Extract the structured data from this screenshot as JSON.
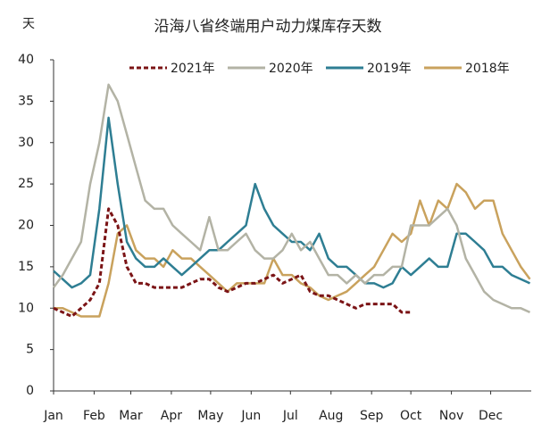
{
  "chart_data": {
    "type": "line",
    "title": "沿海八省终端用户动力煤库存天数",
    "y_label": "天",
    "x": [
      1,
      8,
      15,
      22,
      29,
      36,
      43,
      50,
      57,
      64,
      71,
      78,
      85,
      92,
      99,
      106,
      113,
      120,
      127,
      134,
      141,
      148,
      155,
      162,
      169,
      176,
      183,
      190,
      197,
      204,
      211,
      218,
      225,
      232,
      239,
      246,
      253,
      260,
      267,
      274,
      281,
      288,
      295,
      302,
      309,
      316,
      323,
      330,
      337,
      344,
      351,
      358,
      365
    ],
    "xlim": [
      1,
      366
    ],
    "xticks": [
      {
        "value": 1,
        "label": "Jan"
      },
      {
        "value": 32,
        "label": "Feb"
      },
      {
        "value": 60,
        "label": "Mar"
      },
      {
        "value": 91,
        "label": "Apr"
      },
      {
        "value": 121,
        "label": "May"
      },
      {
        "value": 152,
        "label": "Jun"
      },
      {
        "value": 182,
        "label": "Jul"
      },
      {
        "value": 213,
        "label": "Aug"
      },
      {
        "value": 244,
        "label": "Sep"
      },
      {
        "value": 274,
        "label": "Oct"
      },
      {
        "value": 305,
        "label": "Nov"
      },
      {
        "value": 335,
        "label": "Dec"
      }
    ],
    "ylim": [
      0,
      40
    ],
    "yticks": [
      0,
      5,
      10,
      15,
      20,
      25,
      30,
      35,
      40
    ],
    "grid": false,
    "legend": "top",
    "series": [
      {
        "name": "2021年",
        "color": "#7b1416",
        "dashed": true,
        "values": [
          10,
          9.5,
          9,
          10,
          11,
          13,
          22,
          20,
          15,
          13,
          13,
          12.5,
          12.5,
          12.5,
          12.5,
          13,
          13.5,
          13.5,
          12.5,
          12,
          12.5,
          13,
          13,
          13.5,
          14,
          13,
          13.5,
          14,
          12,
          11.5,
          11.5,
          11,
          10.5,
          10,
          10.5,
          10.5,
          10.5,
          10.5,
          9.5,
          9.5,
          null,
          null,
          null,
          null,
          null,
          null,
          null,
          null,
          null,
          null,
          null,
          null,
          null
        ]
      },
      {
        "name": "2020年",
        "color": "#b3b3a5",
        "dashed": false,
        "values": [
          12.5,
          14,
          16,
          18,
          25,
          30,
          37,
          35,
          31,
          27,
          23,
          22,
          22,
          20,
          19,
          18,
          17,
          21,
          17,
          17,
          18,
          19,
          17,
          16,
          16,
          17,
          19,
          17,
          18,
          16,
          14,
          14,
          13,
          14,
          13,
          14,
          14,
          15,
          15,
          20,
          20,
          20,
          21,
          22,
          20,
          16,
          14,
          12,
          11,
          10.5,
          10,
          10,
          9.5
        ]
      },
      {
        "name": "2019年",
        "color": "#2e7e93",
        "dashed": false,
        "values": [
          14.5,
          13.5,
          12.5,
          13,
          14,
          22,
          33,
          25,
          18,
          16,
          15,
          15,
          16,
          15,
          14,
          15,
          16,
          17,
          17,
          18,
          19,
          20,
          25,
          22,
          20,
          19,
          18,
          18,
          17,
          19,
          16,
          15,
          15,
          14,
          13,
          13,
          12.5,
          13,
          15,
          14,
          15,
          16,
          15,
          15,
          19,
          19,
          18,
          17,
          15,
          15,
          14,
          13.5,
          13
        ]
      },
      {
        "name": "2018年",
        "color": "#c9a25d",
        "dashed": false,
        "values": [
          10,
          10,
          9.5,
          9,
          9,
          9,
          13,
          19,
          20,
          17,
          16,
          16,
          15,
          17,
          16,
          16,
          15,
          14,
          13,
          12,
          13,
          13,
          13,
          13,
          16,
          14,
          14,
          13,
          12.5,
          11.5,
          11,
          11.5,
          12,
          13,
          14,
          15,
          17,
          19,
          18,
          19,
          23,
          20,
          23,
          22,
          25,
          24,
          22,
          23,
          23,
          19,
          17,
          15,
          13.5
        ]
      }
    ]
  }
}
